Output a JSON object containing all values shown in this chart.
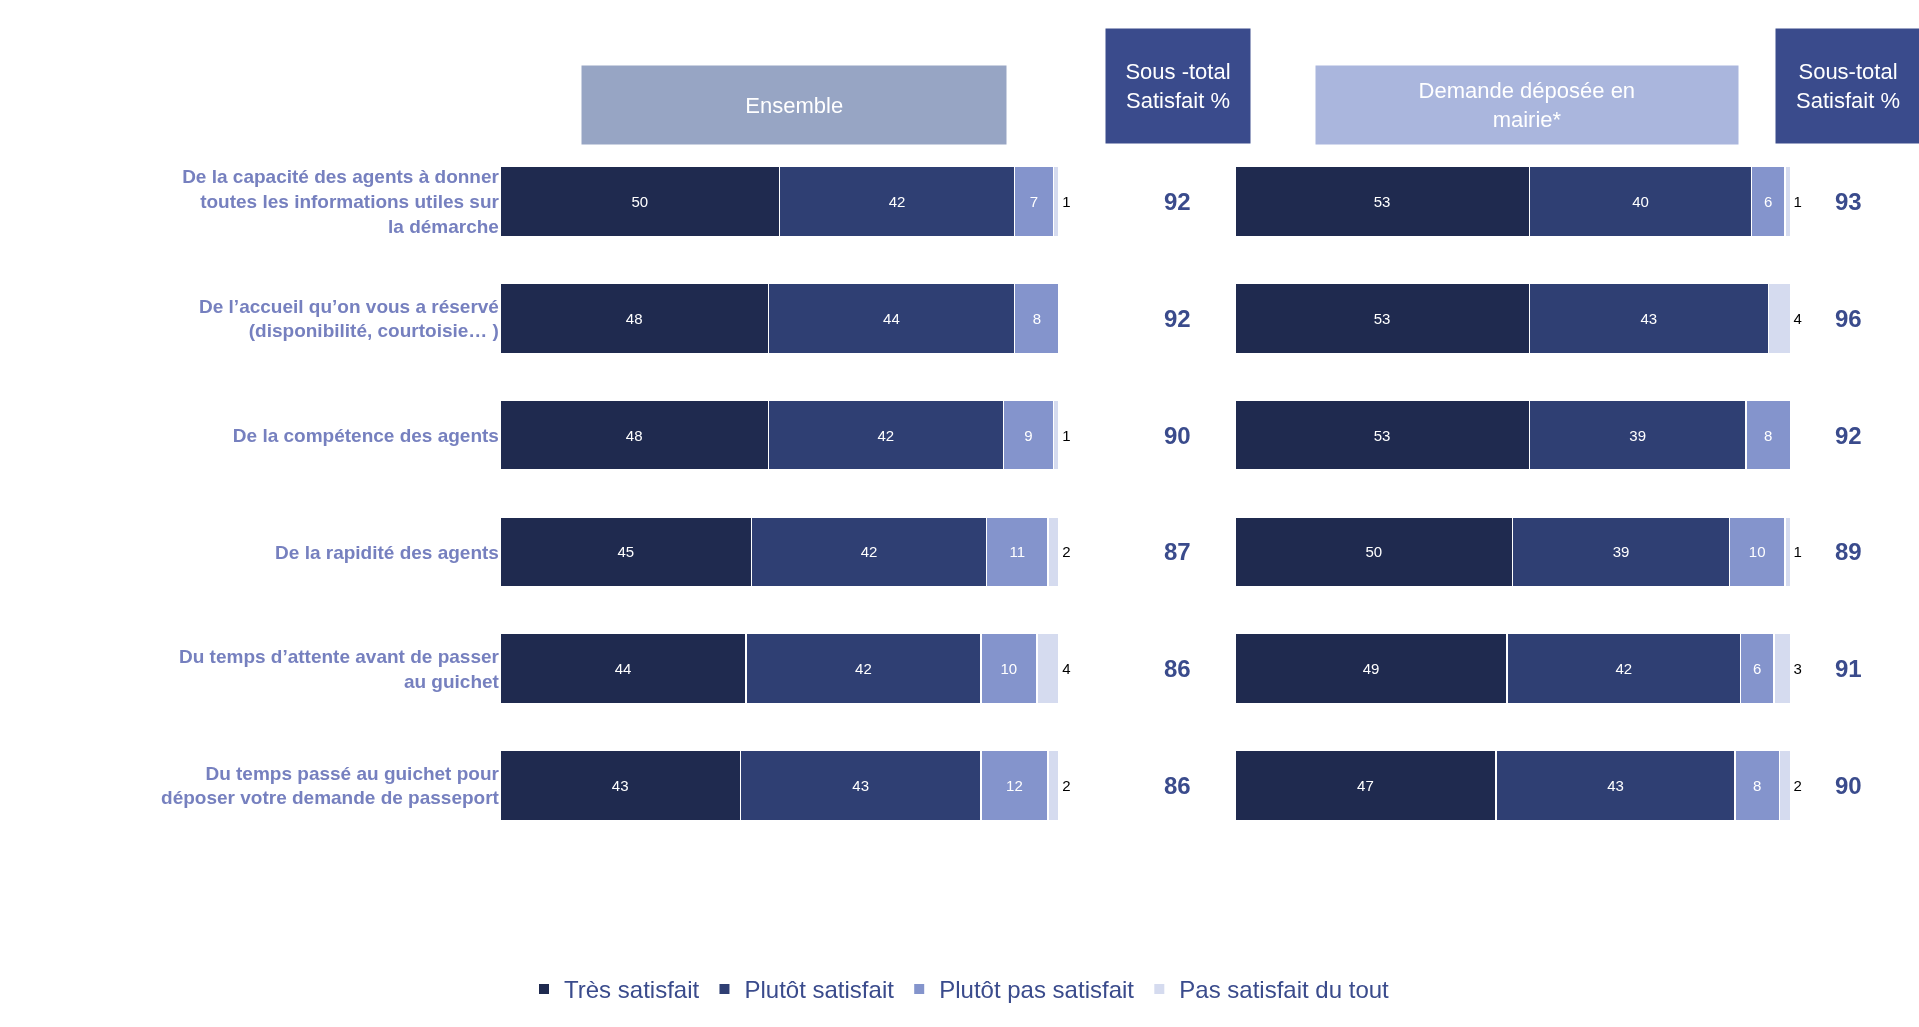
{
  "chart_data": [
    {
      "type": "bar",
      "orientation": "horizontal",
      "stacked": true,
      "title": "Ensemble",
      "categories": [
        "De la capacité des agents à donner toutes les informations utiles sur la démarche",
        "De l’accueil qu’on vous a réservé (disponibilité, courtoisie… )",
        "De la compétence des agents",
        "De la rapidité des agents",
        "Du temps d’attente avant de passer au guichet",
        "Du temps passé au guichet pour déposer votre demande de passeport"
      ],
      "series": [
        {
          "name": "Très satisfait",
          "color": "#1f2a4f",
          "values": [
            50,
            48,
            48,
            45,
            44,
            43
          ]
        },
        {
          "name": "Plutôt satisfait",
          "color": "#2f3f73",
          "values": [
            42,
            44,
            42,
            42,
            42,
            43
          ]
        },
        {
          "name": "Plutôt pas satisfait",
          "color": "#8494cc",
          "values": [
            7,
            8,
            9,
            11,
            10,
            12
          ]
        },
        {
          "name": "Pas satisfait du tout",
          "color": "#d5dbef",
          "values": [
            1,
            null,
            1,
            2,
            4,
            2
          ]
        }
      ],
      "data_labels": true,
      "annotations": [
        "Sous -total Satisfait %",
        "92",
        "92",
        "90",
        "87",
        "86",
        "86"
      ],
      "tick_labels": "y",
      "legend": "bottom"
    },
    {
      "type": "bar",
      "orientation": "horizontal",
      "stacked": true,
      "title": "Demande déposée en mairie*",
      "categories": [
        null,
        null,
        null,
        null,
        null,
        null
      ],
      "series": [
        {
          "name": "Très satisfait",
          "color": "#1f2a4f",
          "values": [
            53,
            53,
            53,
            50,
            49,
            47
          ]
        },
        {
          "name": "Plutôt satisfait",
          "color": "#2f3f73",
          "values": [
            40,
            43,
            39,
            39,
            42,
            43
          ]
        },
        {
          "name": "Plutôt pas satisfait",
          "color": "#8494cc",
          "values": [
            6,
            null,
            8,
            10,
            6,
            8
          ]
        },
        {
          "name": "Pas satisfait du tout",
          "color": "#d5dbef",
          "values": [
            1,
            4,
            null,
            1,
            3,
            2
          ]
        }
      ],
      "data_labels": true,
      "annotations": [
        "Sous-total Satisfait %",
        "93",
        "96",
        "92",
        "89",
        "91",
        "90"
      ],
      "tick_labels": false,
      "legend": "bottom"
    }
  ]
}
